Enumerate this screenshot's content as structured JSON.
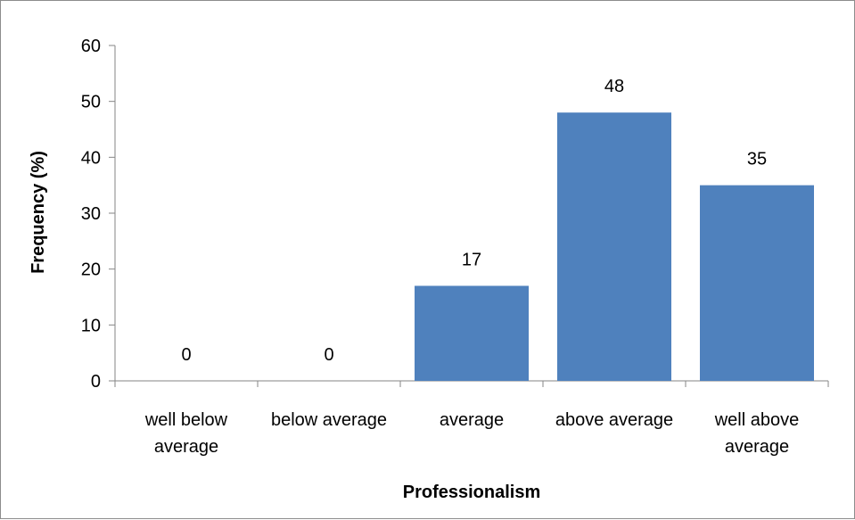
{
  "chart_data": {
    "type": "bar",
    "categories": [
      [
        "well below",
        "average"
      ],
      [
        "below average"
      ],
      [
        "average"
      ],
      [
        "above average"
      ],
      [
        "well above",
        "average"
      ]
    ],
    "values": [
      0,
      0,
      17,
      48,
      35
    ],
    "data_labels": [
      "0",
      "0",
      "17",
      "48",
      "35"
    ],
    "xlabel": "Professionalism",
    "ylabel": "Frequency (%)",
    "ylim": [
      0,
      60
    ],
    "yticks": [
      0,
      10,
      20,
      30,
      40,
      50,
      60
    ],
    "bar_color": "#4F81BD",
    "grid": false,
    "legend": "none"
  }
}
